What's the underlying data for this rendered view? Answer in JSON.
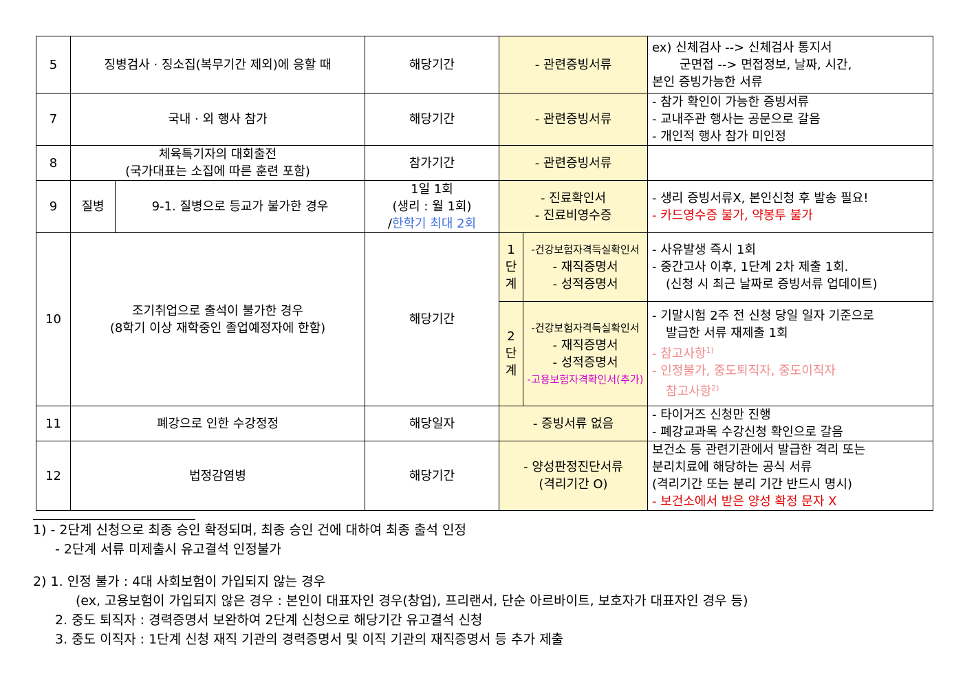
{
  "rows": {
    "r5": {
      "no": "5",
      "item": "징병검사 · 징소집(복무기간 제외)에 응할 때",
      "period": "해당기간",
      "docs": "- 관련증빙서류",
      "notes": [
        "ex) 신체검사 --> 신체검사 통지서",
        "군면접 --> 면접정보, 날짜, 시간,",
        "본인 증빙가능한 서류"
      ]
    },
    "r7": {
      "no": "7",
      "item": "국내 · 외 행사 참가",
      "period": "해당기간",
      "docs": "- 관련증빙서류",
      "notes": [
        "- 참가 확인이 가능한 증빙서류",
        "- 교내주관 행사는 공문으로 갈음",
        "- 개인적 행사 참가 미인정"
      ]
    },
    "r8": {
      "no": "8",
      "item": [
        "체육특기자의 대회출전",
        "(국가대표는 소집에 따른 훈련 포함)"
      ],
      "period": "참가기간",
      "docs": "- 관련증빙서류"
    },
    "r9": {
      "no": "9",
      "category": "질병",
      "item": "9-1. 질병으로 등교가 불가한 경우",
      "period": [
        "1일 1회",
        "(생리 : 월 1회)",
        "/",
        "한학기 최대 2회"
      ],
      "docs": [
        "- 진료확인서",
        "- 진료비영수증"
      ],
      "notes": [
        "- 생리 증빙서류X, 본인신청 후 발송 필요!",
        "- 카드영수증 불가, 약봉투 불가"
      ]
    },
    "r10": {
      "no": "10",
      "item": [
        "조기취업으로 출석이 불가한 경우",
        "(8학기 이상 재학중인 졸업예정자에 한함)"
      ],
      "period": "해당기간",
      "stage1": {
        "label": [
          "1",
          "단",
          "계"
        ],
        "docs": [
          "-건강보험자격득실확인서",
          "- 재직증명서",
          "- 성적증명서"
        ],
        "notes": [
          "- 사유발생 즉시 1회",
          "- 중간고사 이후, 1단계 2차 제출 1회.",
          "(신청 시 최근 날짜로 증빙서류 업데이트)"
        ]
      },
      "stage2": {
        "label": [
          "2",
          "단",
          "계"
        ],
        "docs": [
          "-건강보험자격득실확인서",
          "- 재직증명서",
          "- 성적증명서",
          "-고용보험자격확인서(추가)"
        ],
        "notes": [
          "- 기말시험 2주 전 신청 당일 일자 기준으로",
          "발급한 서류 재제출 1회",
          "- 참고사항",
          "1)",
          "- 인정불가, 중도퇴직자, 중도이직자",
          "참고사항",
          "2)"
        ]
      }
    },
    "r11": {
      "no": "11",
      "item": "폐강으로 인한 수강정정",
      "period": "해당일자",
      "docs": "- 증빙서류 없음",
      "notes": [
        "- 타이거즈 신청만 진행",
        "- 폐강교과목 수강신청 확인으로 갈음"
      ]
    },
    "r12": {
      "no": "12",
      "item": "법정감염병",
      "period": "해당기간",
      "docs": [
        "- 양성판정진단서류",
        "(격리기간 O)"
      ],
      "notes": [
        "보건소 등 관련기관에서 발급한 격리 또는",
        "분리치료에 해당하는 공식 서류",
        "(격리기간 또는 분리 기간 반드시 명시)",
        "- 보건소에서 받은 양성 확정 문자 X"
      ]
    }
  },
  "footnotes": [
    "1) - 2단계 신청으로 최종 승인 확정되며, 최종 승인 건에 대하여 최종 출석 인정",
    "- 2단계 서류 미제출시 유고결석 인정불가",
    "2) 1. 인정 불가 : 4대 사회보험이 가입되지 않는 경우",
    "(ex, 고용보험이 가입되지 않은 경우 : 본인이 대표자인 경우(창업), 프리랜서, 단순 아르바이트, 보호자가 대표자인 경우 등)",
    "2. 중도 퇴직자 : 경력증명서 보완하여 2단계 신청으로 해당기간 유고결석 신청",
    "3. 중도 이직자 : 1단계 신청 재직 기관의 경력증명서 및 이직 기관의 재직증명서 등 추가 제출"
  ],
  "colors": {
    "highlight": "#fff7cc",
    "red": "#e00000",
    "blue": "#3b6fe0",
    "pink": "#f08a8a",
    "magenta": "#d000d0"
  }
}
